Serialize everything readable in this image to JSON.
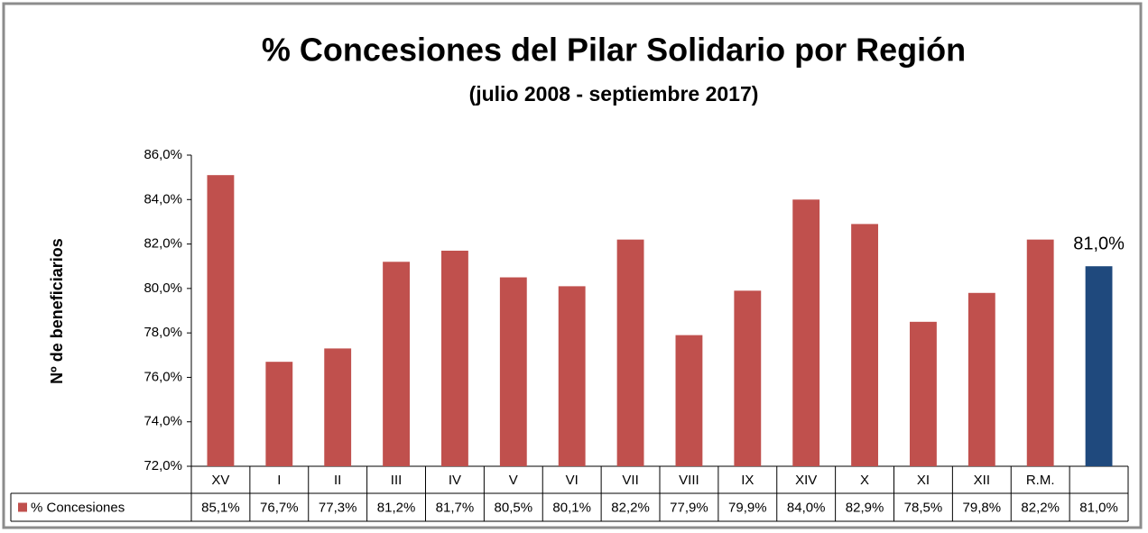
{
  "chart_data": {
    "type": "bar",
    "title": "% Concesiones del Pilar Solidario por Región",
    "subtitle": "(julio 2008  - septiembre 2017)",
    "y_label": "Nº de beneficiarios",
    "categories": [
      "XV",
      "I",
      "II",
      "III",
      "IV",
      "V",
      "VI",
      "VII",
      "VIII",
      "IX",
      "XIV",
      "X",
      "XI",
      "XII",
      "R.M.",
      null
    ],
    "series": [
      {
        "name": "% Concesiones",
        "color": "#c0504d",
        "colors": [
          "#c0504d",
          "#c0504d",
          "#c0504d",
          "#c0504d",
          "#c0504d",
          "#c0504d",
          "#c0504d",
          "#c0504d",
          "#c0504d",
          "#c0504d",
          "#c0504d",
          "#c0504d",
          "#c0504d",
          "#c0504d",
          "#c0504d",
          "#1f497d"
        ],
        "values": [
          85.1,
          76.7,
          77.3,
          81.2,
          81.7,
          80.5,
          80.1,
          82.2,
          77.9,
          79.9,
          84.0,
          82.9,
          78.5,
          79.8,
          82.2,
          81.0
        ],
        "value_labels": [
          "85,1%",
          "76,7%",
          "77,3%",
          "81,2%",
          "81,7%",
          "80,5%",
          "80,1%",
          "82,2%",
          "77,9%",
          "79,9%",
          "84,0%",
          "82,9%",
          "78,5%",
          "79,8%",
          "82,2%",
          "81,0%"
        ]
      }
    ],
    "ylim": [
      72,
      86
    ],
    "yticks": [
      {
        "value": 72,
        "label": "72,0%"
      },
      {
        "value": 74,
        "label": "74,0%"
      },
      {
        "value": 76,
        "label": "76,0%"
      },
      {
        "value": 78,
        "label": "78,0%"
      },
      {
        "value": 80,
        "label": "80,0%"
      },
      {
        "value": 82,
        "label": "82,0%"
      },
      {
        "value": 84,
        "label": "84,0%"
      },
      {
        "value": 86,
        "label": "86,0%"
      }
    ],
    "grid": false
  }
}
